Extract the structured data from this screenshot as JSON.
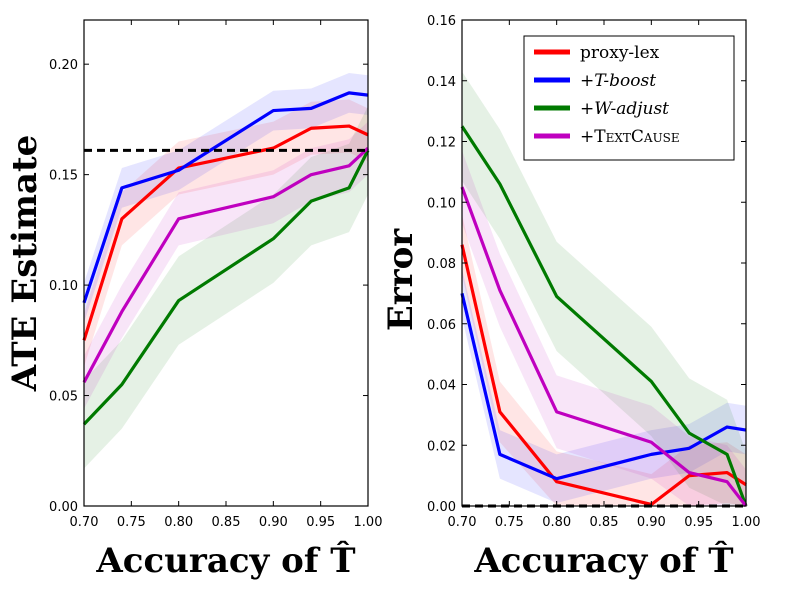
{
  "colors": {
    "proxy_lex": "#ff0000",
    "t_boost": "#0000ff",
    "w_adjust": "#007a00",
    "textcause": "#bf00bf",
    "reference": "#000000"
  },
  "chart_data": [
    {
      "type": "line",
      "title": "",
      "xlabel": "Accuracy of T̂",
      "ylabel": "ATE Estimate",
      "xlim": [
        0.7,
        1.0
      ],
      "ylim": [
        0.0,
        0.22
      ],
      "x_ticks": [
        "0.70",
        "0.75",
        "0.80",
        "0.85",
        "0.90",
        "0.95",
        "1.00"
      ],
      "y_ticks": [
        "0.00",
        "0.05",
        "0.10",
        "0.15",
        "0.20"
      ],
      "reference_line": {
        "y": 0.161,
        "style": "dashed"
      },
      "x": [
        0.7,
        0.74,
        0.8,
        0.9,
        0.94,
        0.98,
        1.0
      ],
      "series": [
        {
          "name": "proxy-lex",
          "color_key": "proxy_lex",
          "values": [
            0.075,
            0.13,
            0.153,
            0.162,
            0.171,
            0.172,
            0.168
          ],
          "band": 0.012
        },
        {
          "name": "+T-boost",
          "color_key": "t_boost",
          "values": [
            0.092,
            0.144,
            0.152,
            0.179,
            0.18,
            0.187,
            0.186
          ],
          "band": 0.009
        },
        {
          "name": "+W-adjust",
          "color_key": "w_adjust",
          "values": [
            0.037,
            0.055,
            0.093,
            0.121,
            0.138,
            0.144,
            0.161
          ],
          "band": 0.02
        },
        {
          "name": "+TextCause",
          "color_key": "textcause",
          "values": [
            0.056,
            0.088,
            0.13,
            0.14,
            0.15,
            0.154,
            0.162
          ],
          "band": 0.012
        }
      ]
    },
    {
      "type": "line",
      "title": "",
      "xlabel": "Accuracy of T̂",
      "ylabel": "Error",
      "xlim": [
        0.7,
        1.0
      ],
      "ylim": [
        0.0,
        0.16
      ],
      "x_ticks": [
        "0.70",
        "0.75",
        "0.80",
        "0.85",
        "0.90",
        "0.95",
        "1.00"
      ],
      "y_ticks": [
        "0.00",
        "0.02",
        "0.04",
        "0.06",
        "0.08",
        "0.10",
        "0.12",
        "0.14",
        "0.16"
      ],
      "reference_line": {
        "y": 0.0,
        "style": "dashed"
      },
      "legend": {
        "position": "top-right",
        "entries": [
          "proxy-lex",
          "+T-boost",
          "+W-adjust",
          "+TextCause"
        ]
      },
      "x": [
        0.7,
        0.74,
        0.8,
        0.9,
        0.94,
        0.98,
        1.0
      ],
      "series": [
        {
          "name": "proxy-lex",
          "color_key": "proxy_lex",
          "values": [
            0.086,
            0.031,
            0.008,
            0.0005,
            0.01,
            0.011,
            0.007
          ],
          "band": 0.01
        },
        {
          "name": "+T-boost",
          "color_key": "t_boost",
          "values": [
            0.07,
            0.017,
            0.009,
            0.017,
            0.019,
            0.026,
            0.025
          ],
          "band": 0.008
        },
        {
          "name": "+W-adjust",
          "color_key": "w_adjust",
          "values": [
            0.125,
            0.106,
            0.069,
            0.041,
            0.024,
            0.017,
            0.0
          ],
          "band": 0.018
        },
        {
          "name": "+TextCause",
          "color_key": "textcause",
          "values": [
            0.105,
            0.071,
            0.031,
            0.021,
            0.011,
            0.008,
            0.0
          ],
          "band": 0.012
        }
      ]
    }
  ]
}
